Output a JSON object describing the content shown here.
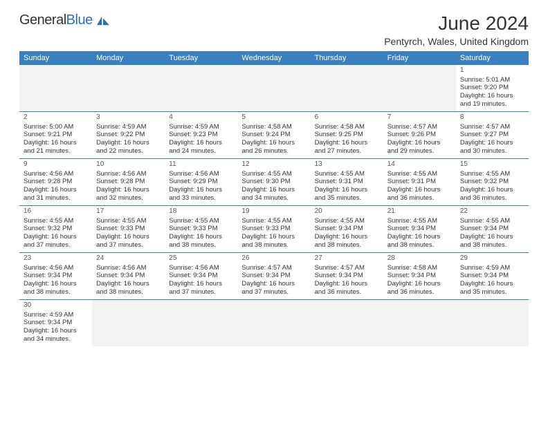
{
  "brand": {
    "name_a": "General",
    "name_b": "Blue",
    "logo_color": "#2f6fa8"
  },
  "title": "June 2024",
  "location": "Pentyrch, Wales, United Kingdom",
  "colors": {
    "header_bg": "#3b7fbf",
    "header_fg": "#ffffff",
    "border": "#3b7fbf",
    "empty_bg": "#f2f2f2"
  },
  "weekdays": [
    "Sunday",
    "Monday",
    "Tuesday",
    "Wednesday",
    "Thursday",
    "Friday",
    "Saturday"
  ],
  "weeks": [
    [
      null,
      null,
      null,
      null,
      null,
      null,
      {
        "d": "1",
        "sunrise": "5:01 AM",
        "sunset": "9:20 PM",
        "day_h": "16",
        "day_m": "19"
      }
    ],
    [
      {
        "d": "2",
        "sunrise": "5:00 AM",
        "sunset": "9:21 PM",
        "day_h": "16",
        "day_m": "21"
      },
      {
        "d": "3",
        "sunrise": "4:59 AM",
        "sunset": "9:22 PM",
        "day_h": "16",
        "day_m": "22"
      },
      {
        "d": "4",
        "sunrise": "4:59 AM",
        "sunset": "9:23 PM",
        "day_h": "16",
        "day_m": "24"
      },
      {
        "d": "5",
        "sunrise": "4:58 AM",
        "sunset": "9:24 PM",
        "day_h": "16",
        "day_m": "26"
      },
      {
        "d": "6",
        "sunrise": "4:58 AM",
        "sunset": "9:25 PM",
        "day_h": "16",
        "day_m": "27"
      },
      {
        "d": "7",
        "sunrise": "4:57 AM",
        "sunset": "9:26 PM",
        "day_h": "16",
        "day_m": "29"
      },
      {
        "d": "8",
        "sunrise": "4:57 AM",
        "sunset": "9:27 PM",
        "day_h": "16",
        "day_m": "30"
      }
    ],
    [
      {
        "d": "9",
        "sunrise": "4:56 AM",
        "sunset": "9:28 PM",
        "day_h": "16",
        "day_m": "31"
      },
      {
        "d": "10",
        "sunrise": "4:56 AM",
        "sunset": "9:28 PM",
        "day_h": "16",
        "day_m": "32"
      },
      {
        "d": "11",
        "sunrise": "4:56 AM",
        "sunset": "9:29 PM",
        "day_h": "16",
        "day_m": "33"
      },
      {
        "d": "12",
        "sunrise": "4:55 AM",
        "sunset": "9:30 PM",
        "day_h": "16",
        "day_m": "34"
      },
      {
        "d": "13",
        "sunrise": "4:55 AM",
        "sunset": "9:31 PM",
        "day_h": "16",
        "day_m": "35"
      },
      {
        "d": "14",
        "sunrise": "4:55 AM",
        "sunset": "9:31 PM",
        "day_h": "16",
        "day_m": "36"
      },
      {
        "d": "15",
        "sunrise": "4:55 AM",
        "sunset": "9:32 PM",
        "day_h": "16",
        "day_m": "36"
      }
    ],
    [
      {
        "d": "16",
        "sunrise": "4:55 AM",
        "sunset": "9:32 PM",
        "day_h": "16",
        "day_m": "37"
      },
      {
        "d": "17",
        "sunrise": "4:55 AM",
        "sunset": "9:33 PM",
        "day_h": "16",
        "day_m": "37"
      },
      {
        "d": "18",
        "sunrise": "4:55 AM",
        "sunset": "9:33 PM",
        "day_h": "16",
        "day_m": "38"
      },
      {
        "d": "19",
        "sunrise": "4:55 AM",
        "sunset": "9:33 PM",
        "day_h": "16",
        "day_m": "38"
      },
      {
        "d": "20",
        "sunrise": "4:55 AM",
        "sunset": "9:34 PM",
        "day_h": "16",
        "day_m": "38"
      },
      {
        "d": "21",
        "sunrise": "4:55 AM",
        "sunset": "9:34 PM",
        "day_h": "16",
        "day_m": "38"
      },
      {
        "d": "22",
        "sunrise": "4:55 AM",
        "sunset": "9:34 PM",
        "day_h": "16",
        "day_m": "38"
      }
    ],
    [
      {
        "d": "23",
        "sunrise": "4:56 AM",
        "sunset": "9:34 PM",
        "day_h": "16",
        "day_m": "38"
      },
      {
        "d": "24",
        "sunrise": "4:56 AM",
        "sunset": "9:34 PM",
        "day_h": "16",
        "day_m": "38"
      },
      {
        "d": "25",
        "sunrise": "4:56 AM",
        "sunset": "9:34 PM",
        "day_h": "16",
        "day_m": "37"
      },
      {
        "d": "26",
        "sunrise": "4:57 AM",
        "sunset": "9:34 PM",
        "day_h": "16",
        "day_m": "37"
      },
      {
        "d": "27",
        "sunrise": "4:57 AM",
        "sunset": "9:34 PM",
        "day_h": "16",
        "day_m": "36"
      },
      {
        "d": "28",
        "sunrise": "4:58 AM",
        "sunset": "9:34 PM",
        "day_h": "16",
        "day_m": "36"
      },
      {
        "d": "29",
        "sunrise": "4:59 AM",
        "sunset": "9:34 PM",
        "day_h": "16",
        "day_m": "35"
      }
    ],
    [
      {
        "d": "30",
        "sunrise": "4:59 AM",
        "sunset": "9:34 PM",
        "day_h": "16",
        "day_m": "34"
      },
      null,
      null,
      null,
      null,
      null,
      null
    ]
  ],
  "labels": {
    "sunrise": "Sunrise:",
    "sunset": "Sunset:",
    "daylight": "Daylight:",
    "hours": "hours",
    "and": "and",
    "minutes": "minutes."
  }
}
